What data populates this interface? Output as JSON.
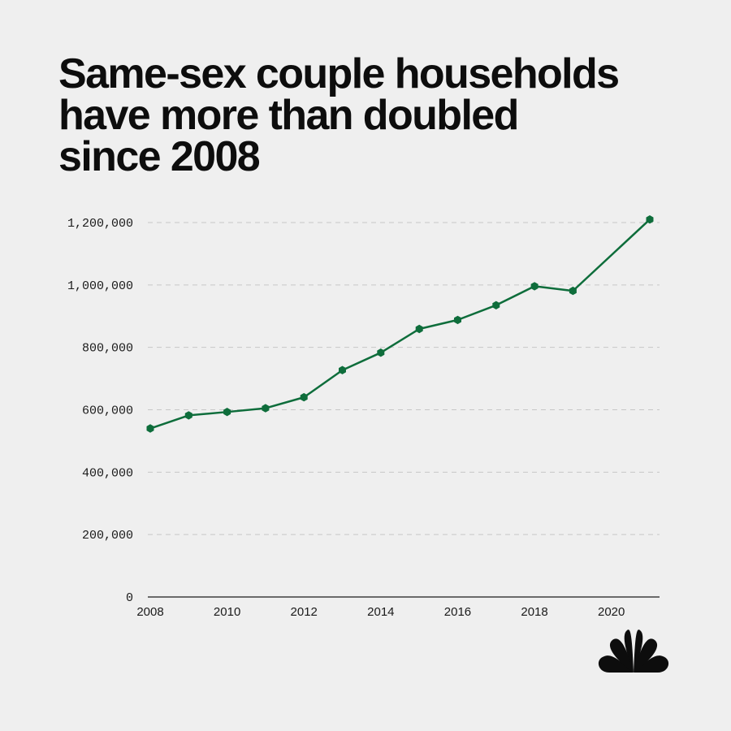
{
  "title_lines": [
    "Same-sex couple households",
    "have more than doubled",
    "since 2008"
  ],
  "logo": {
    "icon": "nbc-peacock-icon"
  },
  "colors": {
    "line": "#0e6d3b",
    "grid": "#c7c7c7",
    "axis": "#1a1a1a",
    "background": "#efefef"
  },
  "chart_data": {
    "type": "line",
    "title": "Same-sex couple households have more than doubled since 2008",
    "xlabel": "",
    "ylabel": "",
    "x": [
      2008,
      2009,
      2010,
      2011,
      2012,
      2013,
      2014,
      2015,
      2016,
      2017,
      2018,
      2019,
      2021
    ],
    "series": [
      {
        "values": [
          540000,
          582000,
          593000,
          605000,
          640000,
          727000,
          783000,
          859000,
          888000,
          935000,
          996000,
          981000,
          1210000
        ]
      }
    ],
    "xlim": [
      2008,
      2021
    ],
    "ylim": [
      0,
      1200000
    ],
    "yticks": [
      0,
      200000,
      400000,
      600000,
      800000,
      1000000,
      1200000
    ],
    "ytick_labels": [
      "0",
      "200,000",
      "400,000",
      "600,000",
      "800,000",
      "1,000,000",
      "1,200,000"
    ],
    "xticks": [
      2008,
      2010,
      2012,
      2014,
      2016,
      2018,
      2020
    ],
    "xtick_labels": [
      "2008",
      "2010",
      "2012",
      "2014",
      "2016",
      "2018",
      "2020"
    ],
    "grid": true,
    "legend": "none"
  }
}
